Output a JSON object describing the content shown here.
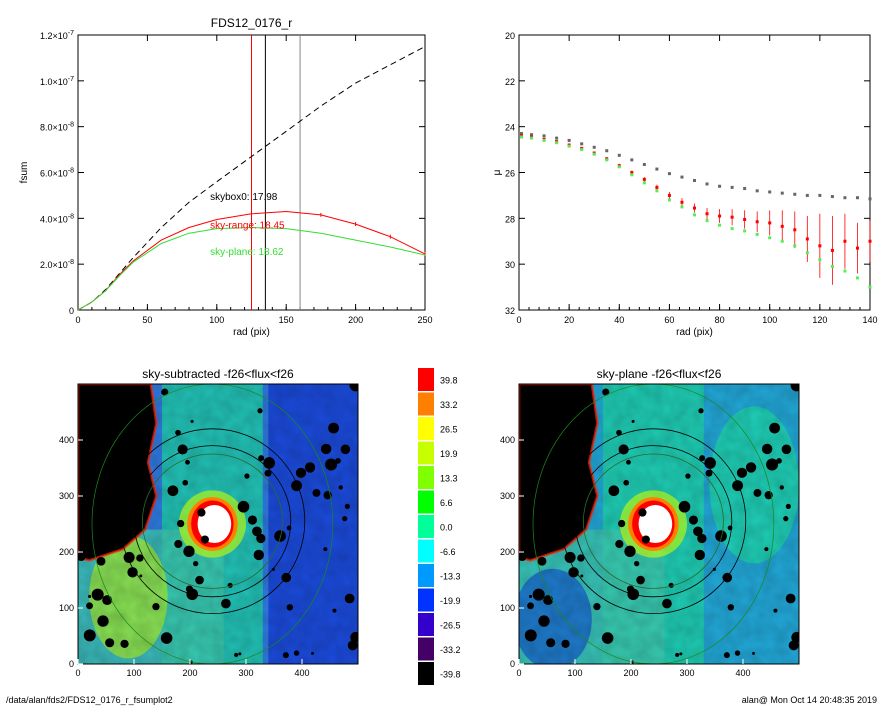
{
  "chart_data": [
    {
      "type": "line",
      "title": "FDS12_0176_r",
      "xlabel": "rad (pix)",
      "ylabel": "fsum",
      "xlim": [
        0,
        250
      ],
      "ylim": [
        0,
        1.2e-07
      ],
      "xticks": [
        0,
        50,
        100,
        150,
        200,
        250
      ],
      "xtick_labels": [
        "0",
        "50",
        "100",
        "150",
        "200",
        "250"
      ],
      "yticks": [
        0,
        2e-08,
        4e-08,
        6e-08,
        8e-08,
        1e-07,
        1.2e-07
      ],
      "ytick_labels": [
        {
          "m": "0",
          "e": ""
        },
        {
          "m": "2.0×10",
          "e": "-8"
        },
        {
          "m": "4.0×10",
          "e": "-8"
        },
        {
          "m": "6.0×10",
          "e": "-8"
        },
        {
          "m": "8.0×10",
          "e": "-8"
        },
        {
          "m": "1.0×10",
          "e": "-7"
        },
        {
          "m": "1.2×10",
          "e": "-7"
        }
      ],
      "vlines": [
        {
          "x": 125,
          "color": "#ff0000"
        },
        {
          "x": 135,
          "color": "#000000"
        },
        {
          "x": 160,
          "color": "#888888"
        }
      ],
      "series": [
        {
          "color": "#000000",
          "dash": true,
          "x": [
            0,
            10,
            20,
            30,
            40,
            60,
            80,
            100,
            125,
            150,
            175,
            200,
            225,
            250
          ],
          "y": [
            0,
            3.5e-09,
            9e-09,
            1.6e-08,
            2.3e-08,
            3.6e-08,
            4.7e-08,
            5.6e-08,
            6.7e-08,
            7.8e-08,
            8.9e-08,
            9.9e-08,
            1.07e-07,
            1.15e-07
          ]
        },
        {
          "color": "#ff0000",
          "dash": false,
          "errors": true,
          "x": [
            0,
            10,
            20,
            30,
            40,
            60,
            80,
            100,
            125,
            150,
            175,
            200,
            225,
            250
          ],
          "y": [
            0,
            3.5e-09,
            8.5e-09,
            1.55e-08,
            2.15e-08,
            3.05e-08,
            3.6e-08,
            3.95e-08,
            4.2e-08,
            4.3e-08,
            4.15e-08,
            3.75e-08,
            3.2e-08,
            2.45e-08
          ]
        },
        {
          "color": "#33dd33",
          "dash": false,
          "x": [
            0,
            10,
            20,
            30,
            40,
            60,
            80,
            100,
            125,
            150,
            175,
            200,
            225,
            250
          ],
          "y": [
            0,
            3.5e-09,
            8.5e-09,
            1.5e-08,
            2.1e-08,
            2.9e-08,
            3.35e-08,
            3.55e-08,
            3.6e-08,
            3.55e-08,
            3.35e-08,
            3.05e-08,
            2.75e-08,
            2.4e-08
          ]
        }
      ],
      "annotations": [
        {
          "text": "skybox0: 17.98",
          "x": 75,
          "y": 4.8e-08,
          "color": "#000000"
        },
        {
          "text": "sky-range: 18.45",
          "x": 75,
          "y": 3.55e-08,
          "color": "#ff0000"
        },
        {
          "text": "sky-plane: 18.62",
          "x": 75,
          "y": 2.4e-08,
          "color": "#33dd33"
        }
      ]
    },
    {
      "type": "scatter",
      "title": "",
      "xlabel": "rad (pix)",
      "ylabel": "μ",
      "xlim": [
        0,
        140
      ],
      "ylim": [
        32,
        20
      ],
      "xticks": [
        0,
        20,
        40,
        60,
        80,
        100,
        120,
        140
      ],
      "xtick_labels": [
        "0",
        "20",
        "40",
        "60",
        "80",
        "100",
        "120",
        "140"
      ],
      "yticks": [
        20,
        22,
        24,
        26,
        28,
        30,
        32
      ],
      "ytick_labels": [
        "20",
        "22",
        "24",
        "26",
        "28",
        "30",
        "32"
      ],
      "series": [
        {
          "color": "#666666",
          "x": [
            1,
            5,
            10,
            15,
            20,
            25,
            30,
            35,
            40,
            45,
            50,
            55,
            60,
            65,
            70,
            75,
            80,
            85,
            90,
            95,
            100,
            105,
            110,
            115,
            120,
            125,
            130,
            135,
            140
          ],
          "y": [
            24.3,
            24.35,
            24.4,
            24.5,
            24.6,
            24.75,
            24.9,
            25.05,
            25.25,
            25.45,
            25.65,
            25.85,
            26.05,
            26.2,
            26.35,
            26.5,
            26.6,
            26.65,
            26.7,
            26.8,
            26.85,
            26.9,
            26.95,
            27.0,
            27.0,
            27.05,
            27.1,
            27.1,
            27.15
          ]
        },
        {
          "color": "#ff0000",
          "errors": true,
          "x": [
            1,
            5,
            10,
            15,
            20,
            25,
            30,
            35,
            40,
            45,
            50,
            55,
            60,
            65,
            70,
            75,
            80,
            85,
            90,
            95,
            100,
            105,
            110,
            115,
            120,
            125,
            130,
            135,
            140
          ],
          "y": [
            24.4,
            24.45,
            24.55,
            24.65,
            24.8,
            24.95,
            25.15,
            25.4,
            25.7,
            26.0,
            26.3,
            26.65,
            27.0,
            27.3,
            27.55,
            27.8,
            27.9,
            27.95,
            28.05,
            28.15,
            28.2,
            28.35,
            28.5,
            28.9,
            29.2,
            29.4,
            29.0,
            29.3,
            29.0
          ],
          "err": [
            0.05,
            0.05,
            0.05,
            0.05,
            0.05,
            0.06,
            0.06,
            0.07,
            0.08,
            0.09,
            0.1,
            0.12,
            0.15,
            0.18,
            0.2,
            0.25,
            0.3,
            0.35,
            0.4,
            0.45,
            0.55,
            0.7,
            0.8,
            1.0,
            1.4,
            1.5,
            1.2,
            1.1,
            0.9
          ]
        },
        {
          "color": "#55ee55",
          "x": [
            1,
            5,
            10,
            15,
            20,
            25,
            30,
            35,
            40,
            45,
            50,
            55,
            60,
            65,
            70,
            75,
            80,
            85,
            90,
            95,
            100,
            105,
            110,
            115,
            120,
            125,
            130,
            135,
            140
          ],
          "y": [
            24.45,
            24.5,
            24.6,
            24.7,
            24.85,
            25.0,
            25.2,
            25.45,
            25.75,
            26.1,
            26.45,
            26.8,
            27.2,
            27.5,
            27.85,
            28.1,
            28.3,
            28.45,
            28.55,
            28.7,
            28.85,
            29.0,
            29.2,
            29.5,
            29.8,
            30.1,
            30.3,
            30.6,
            31.0
          ]
        }
      ]
    }
  ],
  "images": [
    {
      "title": "sky-subtracted -f26<flux<f26",
      "xlim": [
        0,
        500
      ],
      "ylim": [
        0,
        500
      ],
      "xtick_labels": [
        "0",
        "100",
        "200",
        "300",
        "400"
      ],
      "ytick_labels": [
        "0",
        "100",
        "200",
        "300",
        "400"
      ]
    },
    {
      "title": "sky-plane -f26<flux<f26",
      "xlim": [
        0,
        500
      ],
      "ylim": [
        0,
        500
      ],
      "xtick_labels": [
        "0",
        "100",
        "200",
        "300",
        "400"
      ],
      "ytick_labels": [
        "0",
        "100",
        "200",
        "300",
        "400"
      ]
    }
  ],
  "colorbar": {
    "labels": [
      "39.8",
      "33.2",
      "26.5",
      "19.9",
      "13.3",
      "6.6",
      "0.0",
      "-6.6",
      "-13.3",
      "-19.9",
      "-26.5",
      "-33.2",
      "-39.8"
    ],
    "colors": [
      "#ff0000",
      "#ff8000",
      "#ffff00",
      "#c8ff00",
      "#80ff00",
      "#00ff00",
      "#00ff99",
      "#00ffff",
      "#0099ff",
      "#0033ff",
      "#3300cc",
      "#440066",
      "#000000"
    ]
  },
  "footer": {
    "left": "/data/alan/fds2/FDS12_0176_r_fsumplot2",
    "right": "alan@  Mon Oct 14 20:48:35 2019"
  }
}
